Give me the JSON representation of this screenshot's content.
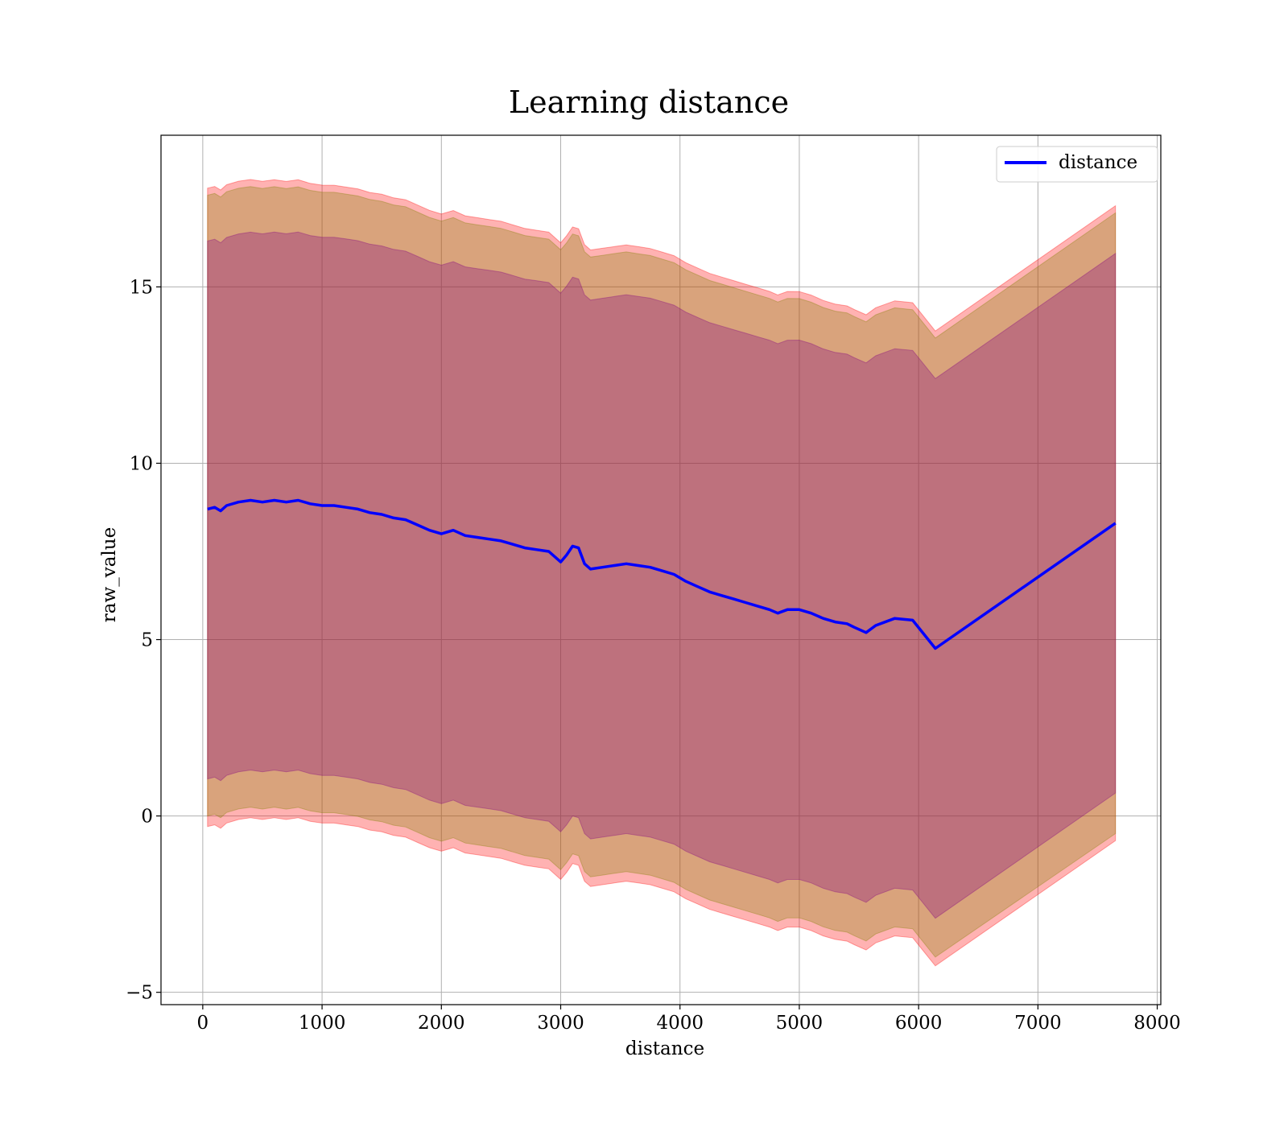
{
  "chart_data": {
    "type": "line",
    "title": "Learning distance",
    "xlabel": "distance",
    "ylabel": "raw_value",
    "xlim": [
      -350,
      8030
    ],
    "ylim": [
      -5.35,
      19.3
    ],
    "xticks": [
      0,
      1000,
      2000,
      3000,
      4000,
      5000,
      6000,
      7000,
      8000
    ],
    "yticks": [
      -5,
      0,
      5,
      10,
      15
    ],
    "ytick_labels": [
      "−5",
      "0",
      "5",
      "10",
      "15"
    ],
    "grid": true,
    "legend": {
      "position": "top-right",
      "entries": [
        "distance"
      ]
    },
    "colors": {
      "line": "#0000ff",
      "band_outer": "#ff0000",
      "band_middle": "#808000",
      "band_inner": "#800080",
      "grid": "#b0b0b0"
    },
    "series": [
      {
        "name": "distance",
        "x": [
          40,
          100,
          150,
          200,
          300,
          400,
          500,
          600,
          700,
          800,
          900,
          1000,
          1100,
          1200,
          1300,
          1400,
          1500,
          1600,
          1700,
          1800,
          1900,
          2000,
          2100,
          2200,
          2300,
          2400,
          2500,
          2600,
          2700,
          2800,
          2900,
          3000,
          3050,
          3100,
          3150,
          3200,
          3250,
          3350,
          3450,
          3550,
          3650,
          3750,
          3850,
          3950,
          4050,
          4150,
          4250,
          4350,
          4450,
          4550,
          4650,
          4750,
          4820,
          4900,
          5000,
          5100,
          5200,
          5300,
          5400,
          5460,
          5560,
          5640,
          5800,
          5950,
          6140,
          7650
        ],
        "y": [
          8.7,
          8.75,
          8.65,
          8.8,
          8.9,
          8.95,
          8.9,
          8.95,
          8.9,
          8.95,
          8.85,
          8.8,
          8.8,
          8.75,
          8.7,
          8.6,
          8.55,
          8.45,
          8.4,
          8.25,
          8.1,
          8.0,
          8.1,
          7.95,
          7.9,
          7.85,
          7.8,
          7.7,
          7.6,
          7.55,
          7.5,
          7.2,
          7.4,
          7.65,
          7.6,
          7.15,
          7.0,
          7.05,
          7.1,
          7.15,
          7.1,
          7.05,
          6.95,
          6.85,
          6.65,
          6.5,
          6.35,
          6.25,
          6.15,
          6.05,
          5.95,
          5.85,
          5.75,
          5.85,
          5.85,
          5.75,
          5.6,
          5.5,
          5.45,
          5.35,
          5.2,
          5.4,
          5.6,
          5.55,
          4.75,
          8.3
        ]
      }
    ],
    "bands": [
      {
        "name": "outer",
        "x": [
          40,
          6140,
          7650
        ],
        "upper_offset": [
          9.1,
          9.0,
          9.0
        ],
        "lower_offset": [
          9.0,
          9.0,
          9.0
        ]
      },
      {
        "name": "middle",
        "x": [
          40,
          6140,
          7650
        ],
        "upper_offset": [
          8.9,
          8.8,
          8.8
        ],
        "lower_offset": [
          8.7,
          8.75,
          8.8
        ]
      },
      {
        "name": "inner",
        "x": [
          40,
          6140,
          7650
        ],
        "upper_offset": [
          7.6,
          7.65,
          7.65
        ],
        "lower_offset": [
          7.65,
          7.65,
          7.65
        ]
      }
    ]
  }
}
